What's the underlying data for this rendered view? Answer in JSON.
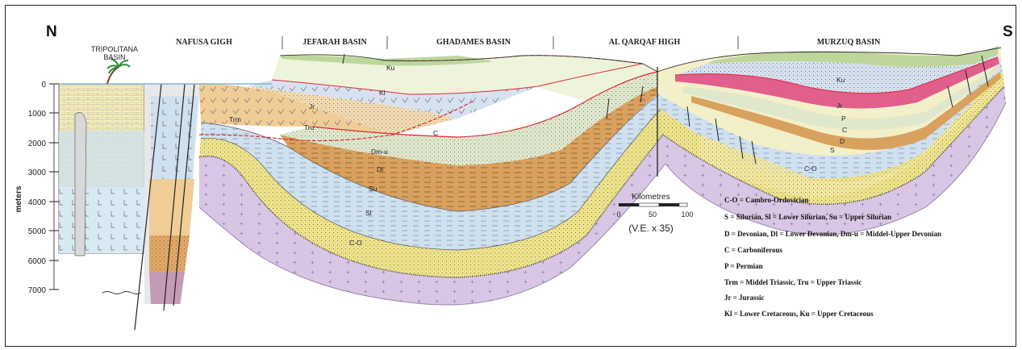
{
  "compass": {
    "north": "N",
    "south": "S"
  },
  "regions": [
    {
      "key": "tripolitana",
      "label_line1": "TRIPOLITANA",
      "label_line2": "BASIN"
    },
    {
      "key": "nafusa",
      "label": "NAFUSA GIGH"
    },
    {
      "key": "jefarah",
      "label": "JEFARAH BASIN"
    },
    {
      "key": "ghadames",
      "label": "GHADAMES BASIN"
    },
    {
      "key": "qarqaf",
      "label": "AL QARQAF HIGH"
    },
    {
      "key": "murzuq",
      "label": "MURZUQ BASIN"
    }
  ],
  "depth_axis": {
    "title": "meters",
    "ticks": [
      "0",
      "1000",
      "2000",
      "3000",
      "4000",
      "5000",
      "6000",
      "7000"
    ]
  },
  "unit_labels": {
    "ku_north": "Ku",
    "kl_north": "Kl",
    "jr_north": "Jr",
    "trm": "Trm",
    "tru": "Tru",
    "c_north": "C",
    "dmu": "Dm-u",
    "dl": "Dl",
    "su": "Su",
    "sl": "Sl",
    "co_north": "C-O",
    "ku_south": "Ku",
    "jr_south": "Jr",
    "p_south": "P",
    "c_south": "C",
    "d_south": "D",
    "s_south": "S",
    "co_south": "C-O"
  },
  "scale_bar": {
    "title": "Kilometres",
    "ticks": [
      "0",
      "50",
      "100"
    ],
    "vertical_exaggeration": "(V.E. x 35)"
  },
  "legend": [
    "C-O = Cambro-Ordovician",
    "S = Silurian, Sl = Lower Silurian, Su = Upper Silurian",
    "D = Devonian, Dl = Lower Devonian, Dm-u = Middel-Upper Devonian",
    "C = Carboniferous",
    "P = Permian",
    "Trm = Middel Triassic, Tru = Upper Triassic",
    "Jr = Jurassic",
    "Kl = Lower Cretaceous, Ku = Upper Cretaceous"
  ],
  "colors": {
    "basement": "#d9c6e4",
    "cambro_ordovician": "#efe38a",
    "silurian": "#cfe0ef",
    "devonian": "#d9a15e",
    "carboniferous": "#dfe8cc",
    "permian": "#de4f86",
    "triassic": "#f0cc96",
    "jurassic": "#d6e2f0",
    "cretaceous_lower": "#eef3dc",
    "cretaceous_upper": "#bcd79a",
    "unconformity": "#e0293a",
    "north_column": "#f4f0b5",
    "fault": "#222222"
  }
}
